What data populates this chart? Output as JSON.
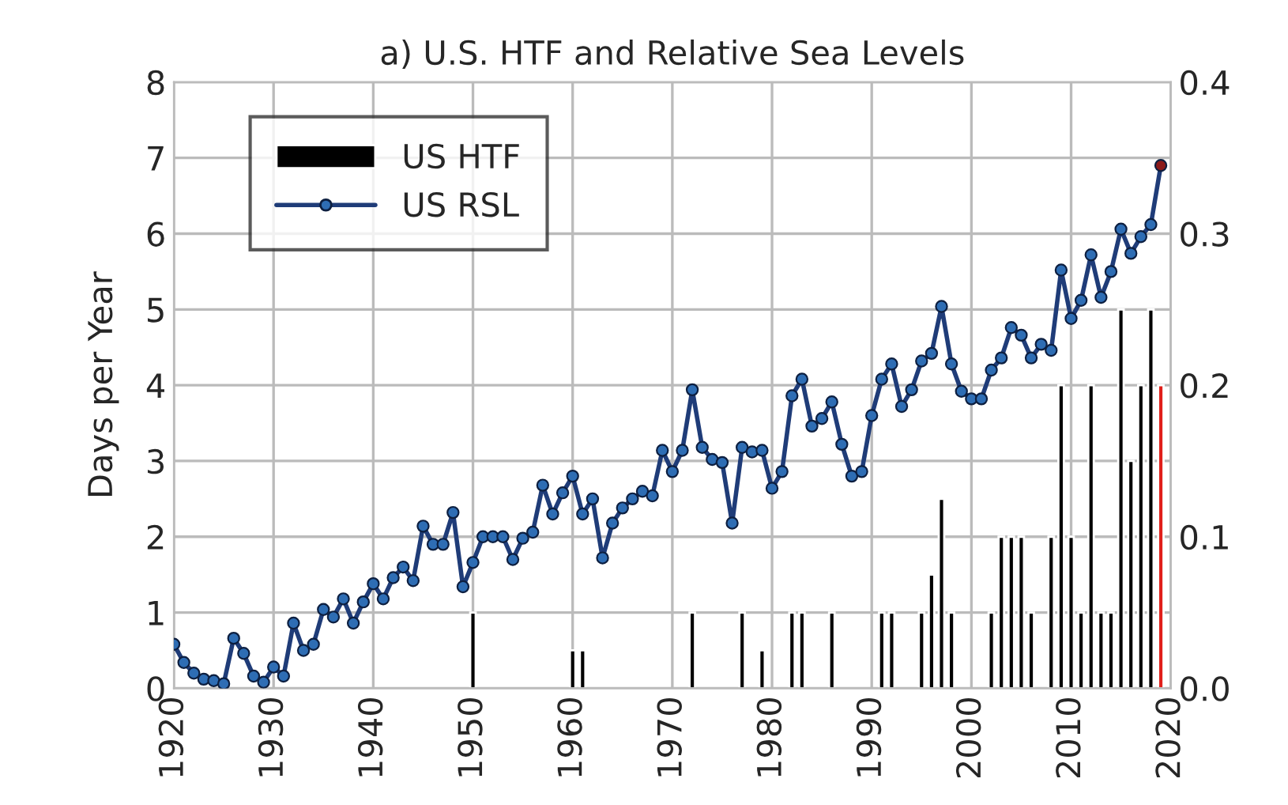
{
  "chart_data": {
    "type": "line",
    "title": "a) U.S. HTF and Relative Sea Levels",
    "ylabel": "Days per Year",
    "xlim": [
      1920,
      2020
    ],
    "xticks": [
      1920,
      1930,
      1940,
      1950,
      1960,
      1970,
      1980,
      1990,
      2000,
      2010,
      2020
    ],
    "ylim": [
      0,
      8
    ],
    "yticks": [
      0,
      1,
      2,
      3,
      4,
      5,
      6,
      7,
      8
    ],
    "y2lim": [
      0,
      0.4
    ],
    "y2ticks": [
      {
        "value": 0,
        "label": "0.0"
      },
      0.1,
      0.2,
      0.3,
      0.4
    ],
    "grid": true,
    "legend": "top left",
    "marker": "circle",
    "series": [
      {
        "name": "US HTF",
        "type": "bar",
        "axis": "y",
        "color": "#000000",
        "x": [
          1950,
          1960,
          1961,
          1972,
          1977,
          1979,
          1982,
          1983,
          1986,
          1991,
          1992,
          1995,
          1996,
          1997,
          1998,
          2002,
          2003,
          2004,
          2005,
          2006,
          2008,
          2009,
          2010,
          2011,
          2012,
          2013,
          2014,
          2015,
          2016,
          2017,
          2018,
          2019
        ],
        "values": [
          1,
          0.5,
          0.5,
          1,
          1,
          0.5,
          1,
          1,
          1,
          1,
          1,
          1,
          1.5,
          2.5,
          1,
          1,
          2,
          2,
          2,
          1,
          2,
          4,
          2,
          1,
          4,
          1,
          1,
          5,
          3,
          4,
          5,
          4
        ],
        "colors": [
          "#000000",
          "#000000",
          "#000000",
          "#000000",
          "#000000",
          "#000000",
          "#000000",
          "#000000",
          "#000000",
          "#000000",
          "#000000",
          "#000000",
          "#000000",
          "#000000",
          "#000000",
          "#000000",
          "#000000",
          "#000000",
          "#000000",
          "#000000",
          "#000000",
          "#000000",
          "#000000",
          "#000000",
          "#000000",
          "#000000",
          "#000000",
          "#000000",
          "#000000",
          "#000000",
          "#000000",
          "#e0201b"
        ]
      },
      {
        "name": "US RSL",
        "axis": "y2",
        "color": "#1f3c78",
        "colors": [
          "#2e6db4",
          "#2e6db4",
          "#2e6db4",
          "#2e6db4",
          "#2e6db4",
          "#2e6db4",
          "#2e6db4",
          "#2e6db4",
          "#2e6db4",
          "#2e6db4",
          "#2e6db4",
          "#2e6db4",
          "#2e6db4",
          "#2e6db4",
          "#2e6db4",
          "#2e6db4",
          "#2e6db4",
          "#2e6db4",
          "#2e6db4",
          "#2e6db4",
          "#2e6db4",
          "#2e6db4",
          "#2e6db4",
          "#2e6db4",
          "#2e6db4",
          "#2e6db4",
          "#2e6db4",
          "#2e6db4",
          "#2e6db4",
          "#2e6db4",
          "#2e6db4",
          "#2e6db4",
          "#2e6db4",
          "#2e6db4",
          "#2e6db4",
          "#2e6db4",
          "#2e6db4",
          "#2e6db4",
          "#2e6db4",
          "#2e6db4",
          "#2e6db4",
          "#2e6db4",
          "#2e6db4",
          "#2e6db4",
          "#2e6db4",
          "#2e6db4",
          "#2e6db4",
          "#2e6db4",
          "#2e6db4",
          "#2e6db4",
          "#2e6db4",
          "#2e6db4",
          "#2e6db4",
          "#2e6db4",
          "#2e6db4",
          "#2e6db4",
          "#2e6db4",
          "#2e6db4",
          "#2e6db4",
          "#2e6db4",
          "#2e6db4",
          "#2e6db4",
          "#2e6db4",
          "#2e6db4",
          "#2e6db4",
          "#2e6db4",
          "#2e6db4",
          "#2e6db4",
          "#2e6db4",
          "#2e6db4",
          "#2e6db4",
          "#2e6db4",
          "#2e6db4",
          "#2e6db4",
          "#2e6db4",
          "#2e6db4",
          "#2e6db4",
          "#2e6db4",
          "#2e6db4",
          "#2e6db4",
          "#2e6db4",
          "#2e6db4",
          "#2e6db4",
          "#2e6db4",
          "#2e6db4",
          "#2e6db4",
          "#2e6db4",
          "#2e6db4",
          "#2e6db4",
          "#2e6db4",
          "#2e6db4",
          "#2e6db4",
          "#2e6db4",
          "#2e6db4",
          "#2e6db4",
          "#2e6db4",
          "#2e6db4",
          "#2e6db4",
          "#2e6db4",
          "#8b1a1a"
        ],
        "x": [
          1920,
          1921,
          1922,
          1923,
          1924,
          1925,
          1926,
          1927,
          1928,
          1929,
          1930,
          1931,
          1932,
          1933,
          1934,
          1935,
          1936,
          1937,
          1938,
          1939,
          1940,
          1941,
          1942,
          1943,
          1944,
          1945,
          1946,
          1947,
          1948,
          1949,
          1950,
          1951,
          1952,
          1953,
          1954,
          1955,
          1956,
          1957,
          1958,
          1959,
          1960,
          1961,
          1962,
          1963,
          1964,
          1965,
          1966,
          1967,
          1968,
          1969,
          1970,
          1971,
          1972,
          1973,
          1974,
          1975,
          1976,
          1977,
          1978,
          1979,
          1980,
          1981,
          1982,
          1983,
          1984,
          1985,
          1986,
          1987,
          1988,
          1989,
          1990,
          1991,
          1992,
          1993,
          1994,
          1995,
          1996,
          1997,
          1998,
          1999,
          2000,
          2001,
          2002,
          2003,
          2004,
          2005,
          2006,
          2007,
          2008,
          2009,
          2010,
          2011,
          2012,
          2013,
          2014,
          2015,
          2016,
          2017,
          2018,
          2019
        ],
        "values": [
          0.029,
          0.017,
          0.01,
          0.006,
          0.005,
          0.003,
          0.033,
          0.023,
          0.008,
          0.004,
          0.014,
          0.008,
          0.043,
          0.025,
          0.029,
          0.052,
          0.047,
          0.059,
          0.043,
          0.057,
          0.069,
          0.059,
          0.073,
          0.08,
          0.071,
          0.107,
          0.095,
          0.095,
          0.116,
          0.067,
          0.083,
          0.1,
          0.1,
          0.1,
          0.085,
          0.099,
          0.103,
          0.134,
          0.115,
          0.129,
          0.14,
          0.115,
          0.125,
          0.086,
          0.109,
          0.119,
          0.125,
          0.13,
          0.127,
          0.157,
          0.143,
          0.157,
          0.197,
          0.159,
          0.151,
          0.149,
          0.109,
          0.159,
          0.156,
          0.157,
          0.132,
          0.143,
          0.193,
          0.204,
          0.173,
          0.178,
          0.189,
          0.161,
          0.14,
          0.143,
          0.18,
          0.204,
          0.214,
          0.186,
          0.197,
          0.216,
          0.221,
          0.252,
          0.214,
          0.196,
          0.191,
          0.191,
          0.21,
          0.218,
          0.238,
          0.233,
          0.218,
          0.227,
          0.223,
          0.276,
          0.244,
          0.256,
          0.286,
          0.258,
          0.275,
          0.303,
          0.287,
          0.298,
          0.306,
          0.345
        ]
      }
    ]
  }
}
